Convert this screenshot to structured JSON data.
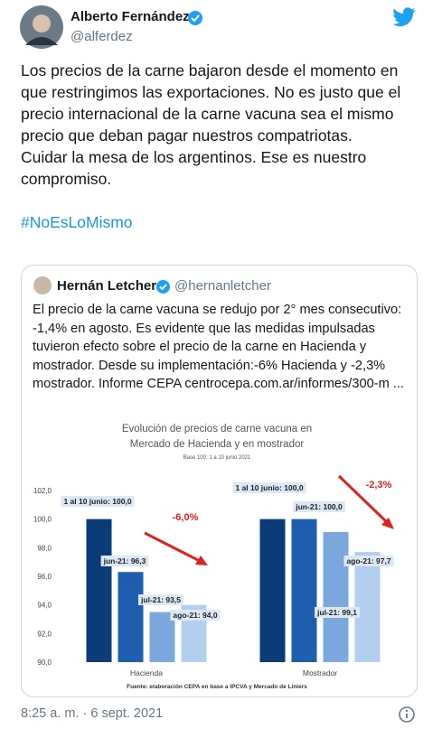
{
  "author": {
    "name": "Alberto Fernández",
    "handle": "@alferdez"
  },
  "text": {
    "paragraphs": [
      "Los precios de la carne bajaron desde el momento en que restringimos las exportaciones. No es justo que el precio internacional de la carne vacuna sea el mismo precio que deban pagar nuestros compatriotas.",
      "Cuidar la mesa de los argentinos. Ese es nuestro compromiso."
    ],
    "hashtag": "#NoEsLoMismo"
  },
  "quoted": {
    "name": "Hernán Letcher",
    "handle": "@hernanletcher",
    "text": "El precio de la carne vacuna se redujo por 2° mes consecutivo: -1,4% en agosto. Es evidente que las medidas impulsadas tuvieron efecto sobre el precio de la carne en Hacienda y mostrador. Desde su implementación:-6% Hacienda y -2,3% mostrador. Informe CEPA centrocepa.com.ar/informes/300-m ..."
  },
  "chart_data": {
    "type": "bar",
    "title": [
      "Evolución de precios de carne vacuna en",
      "Mercado de Hacienda y en mostrador"
    ],
    "subtitle": "Base 100: 1 a 10 junio 2021",
    "categories": [
      "Hacienda",
      "Mostrador"
    ],
    "series": [
      {
        "color": "#0b3c78",
        "values": [
          100.0,
          100.0
        ],
        "value_labels": [
          "1 al 10 junio: 100,0",
          "1 al 10 junio: 100,0"
        ]
      },
      {
        "color": "#1d5eae",
        "values": [
          96.3,
          100.0
        ],
        "value_labels": [
          "jun-21: 96,3",
          "jun-21: 100,0"
        ]
      },
      {
        "color": "#7ba7dd",
        "values": [
          93.5,
          99.1
        ],
        "value_labels": [
          "jul-21: 93,5",
          "jul-21: 99,1"
        ]
      },
      {
        "color": "#b3cfef",
        "values": [
          94.0,
          97.7
        ],
        "value_labels": [
          "ago-21: 94,0",
          "ago-21: 97,7"
        ]
      }
    ],
    "ylim": [
      90,
      102
    ],
    "yticks": [
      {
        "value": 90,
        "label": "90,0"
      },
      {
        "value": 92,
        "label": "92,0"
      },
      {
        "value": 94,
        "label": "94,0"
      },
      {
        "value": 96,
        "label": "96,0"
      },
      {
        "value": 98,
        "label": "98,0"
      },
      {
        "value": 100,
        "label": "100,0"
      },
      {
        "value": 102,
        "label": "102,0"
      }
    ],
    "grid": false,
    "annotations": [
      "-6,0%",
      "-2,3%"
    ],
    "source": "Fuente: elaboración CEPA en base a IPCVA y Mercado de Liniers"
  },
  "timestamp": "8:25 a. m. · 6 sept. 2021"
}
